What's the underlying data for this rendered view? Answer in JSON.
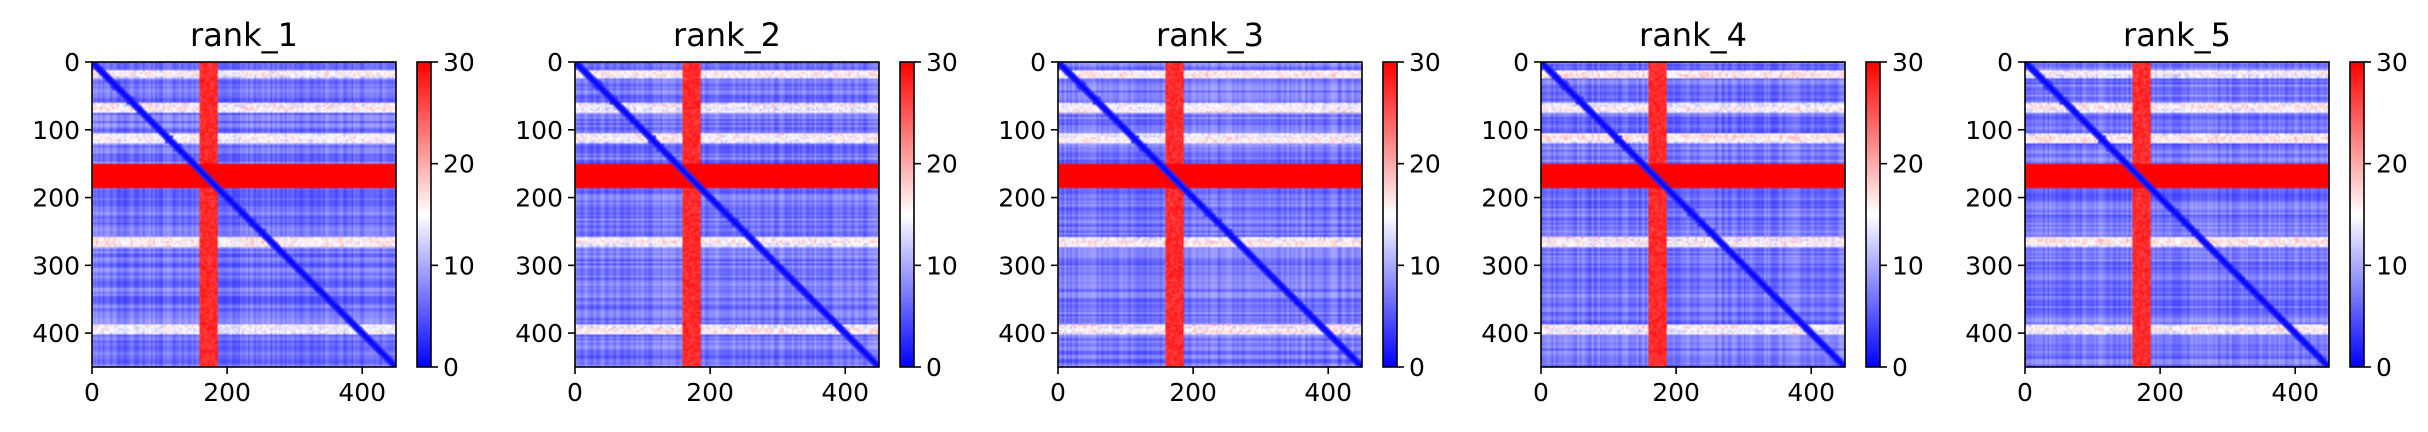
{
  "chart_data": [
    {
      "type": "heatmap",
      "title": "rank_1",
      "matrix_size": 450,
      "xlim": [
        0,
        450
      ],
      "ylim": [
        450,
        0
      ],
      "xticks": [
        0,
        200,
        400
      ],
      "yticks": [
        0,
        100,
        200,
        300,
        400
      ],
      "colorbar": {
        "cmap": "bwr",
        "vmin": 0,
        "vmax": 30,
        "ticks": [
          0,
          10,
          20,
          30
        ]
      },
      "features": {
        "diagonal_value": 0,
        "background_value": 6,
        "red_band_rows": [
          150,
          185
        ],
        "red_band_value": 30,
        "red_band_cols": [
          160,
          185
        ],
        "red_col_value": 26,
        "light_rows": [
          18,
          68,
          112,
          265,
          395
        ]
      }
    },
    {
      "type": "heatmap",
      "title": "rank_2",
      "matrix_size": 450,
      "xlim": [
        0,
        450
      ],
      "ylim": [
        450,
        0
      ],
      "xticks": [
        0,
        200,
        400
      ],
      "yticks": [
        0,
        100,
        200,
        300,
        400
      ],
      "colorbar": {
        "cmap": "bwr",
        "vmin": 0,
        "vmax": 30,
        "ticks": [
          0,
          10,
          20,
          30
        ]
      },
      "features": {
        "diagonal_value": 0,
        "background_value": 6,
        "red_band_rows": [
          150,
          185
        ],
        "red_band_value": 30,
        "red_band_cols": [
          160,
          185
        ],
        "red_col_value": 26,
        "light_rows": [
          18,
          68,
          112,
          265,
          395
        ]
      }
    },
    {
      "type": "heatmap",
      "title": "rank_3",
      "matrix_size": 450,
      "xlim": [
        0,
        450
      ],
      "ylim": [
        450,
        0
      ],
      "xticks": [
        0,
        200,
        400
      ],
      "yticks": [
        0,
        100,
        200,
        300,
        400
      ],
      "colorbar": {
        "cmap": "bwr",
        "vmin": 0,
        "vmax": 30,
        "ticks": [
          0,
          10,
          20,
          30
        ]
      },
      "features": {
        "diagonal_value": 0,
        "background_value": 6,
        "red_band_rows": [
          150,
          185
        ],
        "red_band_value": 30,
        "red_band_cols": [
          160,
          185
        ],
        "red_col_value": 26,
        "light_rows": [
          18,
          68,
          112,
          265,
          395
        ]
      }
    },
    {
      "type": "heatmap",
      "title": "rank_4",
      "matrix_size": 450,
      "xlim": [
        0,
        450
      ],
      "ylim": [
        450,
        0
      ],
      "xticks": [
        0,
        200,
        400
      ],
      "yticks": [
        0,
        100,
        200,
        300,
        400
      ],
      "colorbar": {
        "cmap": "bwr",
        "vmin": 0,
        "vmax": 30,
        "ticks": [
          0,
          10,
          20,
          30
        ]
      },
      "features": {
        "diagonal_value": 0,
        "background_value": 6,
        "red_band_rows": [
          150,
          185
        ],
        "red_band_value": 30,
        "red_band_cols": [
          160,
          185
        ],
        "red_col_value": 26,
        "light_rows": [
          18,
          68,
          112,
          265,
          395
        ]
      }
    },
    {
      "type": "heatmap",
      "title": "rank_5",
      "matrix_size": 450,
      "xlim": [
        0,
        450
      ],
      "ylim": [
        450,
        0
      ],
      "xticks": [
        0,
        200,
        400
      ],
      "yticks": [
        0,
        100,
        200,
        300,
        400
      ],
      "colorbar": {
        "cmap": "bwr",
        "vmin": 0,
        "vmax": 30,
        "ticks": [
          0,
          10,
          20,
          30
        ]
      },
      "features": {
        "diagonal_value": 0,
        "background_value": 6,
        "red_band_rows": [
          150,
          185
        ],
        "red_band_value": 30,
        "red_band_cols": [
          160,
          185
        ],
        "red_col_value": 26,
        "light_rows": [
          18,
          68,
          112,
          265,
          395
        ]
      }
    }
  ],
  "colors": {
    "low": "#0000ff",
    "mid": "#ffffff",
    "high": "#ff0000"
  }
}
